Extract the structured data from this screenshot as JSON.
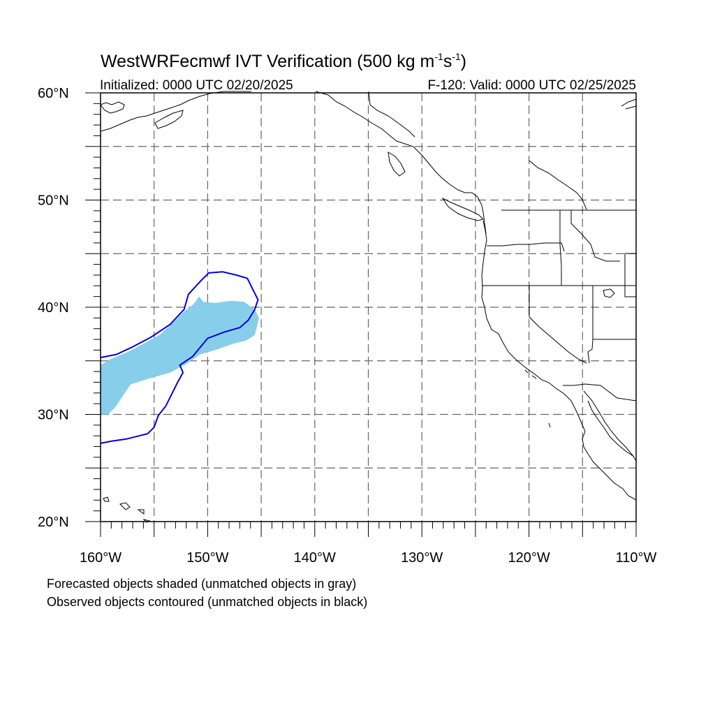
{
  "title": {
    "main": "WestWRFecmwf IVT Verification (500 kg m",
    "sup1": "-1",
    "mid": "s",
    "sup2": "-1",
    "end": ")"
  },
  "subtitle_left": "Initialized: 0000 UTC 02/20/2025",
  "subtitle_right": "F-120: Valid: 0000 UTC 02/25/2025",
  "captions": [
    "Forecasted objects shaded (unmatched objects in gray)",
    "Observed objects contoured (unmatched objects in black)"
  ],
  "chart_data": {
    "type": "map",
    "projection": "cylindrical equidistant",
    "lon_range": [
      -160,
      -110
    ],
    "lat_range": [
      20,
      60
    ],
    "grid": true,
    "grid_spacing_deg": 5,
    "lat_labels": [
      "20°N",
      "30°N",
      "40°N",
      "50°N",
      "60°N"
    ],
    "lat_label_values": [
      20,
      30,
      40,
      50,
      60
    ],
    "lon_labels": [
      "160°W",
      "150°W",
      "140°W",
      "130°W",
      "120°W",
      "110°W"
    ],
    "lon_label_values": [
      -160,
      -150,
      -140,
      -130,
      -120,
      -110
    ],
    "colors": {
      "forecast_fill": "#87ceeb",
      "observed_contour": "#0000dd",
      "coastline": "#000000",
      "grid": "#666666"
    },
    "forecast_object": {
      "polygon": [
        [
          -160,
          34.6
        ],
        [
          -159,
          35.2
        ],
        [
          -157.5,
          35.8
        ],
        [
          -156,
          36.6
        ],
        [
          -154.5,
          37.4
        ],
        [
          -153.3,
          38.5
        ],
        [
          -152.2,
          39.6
        ],
        [
          -151.3,
          40.3
        ],
        [
          -150.8,
          41.0
        ],
        [
          -150.4,
          40.5
        ],
        [
          -149.3,
          40.4
        ],
        [
          -147.8,
          40.6
        ],
        [
          -146.6,
          40.5
        ],
        [
          -145.6,
          39.8
        ],
        [
          -145.2,
          39.0
        ],
        [
          -145.6,
          37.4
        ],
        [
          -146.4,
          36.9
        ],
        [
          -147.6,
          36.6
        ],
        [
          -149.3,
          36.0
        ],
        [
          -150.7,
          35.6
        ],
        [
          -152.0,
          34.7
        ],
        [
          -153.5,
          33.9
        ],
        [
          -155.6,
          33.3
        ],
        [
          -157.2,
          32.8
        ],
        [
          -158.0,
          31.6
        ],
        [
          -158.6,
          30.7
        ],
        [
          -159.3,
          30.0
        ],
        [
          -160,
          30.0
        ]
      ]
    },
    "observed_object": {
      "polygon": [
        [
          -160,
          35.3
        ],
        [
          -158.5,
          35.6
        ],
        [
          -157.0,
          36.3
        ],
        [
          -155.3,
          37.2
        ],
        [
          -153.5,
          38.4
        ],
        [
          -152.2,
          39.8
        ],
        [
          -151.8,
          41.2
        ],
        [
          -150.6,
          42.5
        ],
        [
          -149.9,
          43.2
        ],
        [
          -148.6,
          43.3
        ],
        [
          -147.3,
          43.0
        ],
        [
          -146.3,
          42.7
        ],
        [
          -145.8,
          41.7
        ],
        [
          -145.3,
          40.7
        ],
        [
          -145.6,
          39.8
        ],
        [
          -146.2,
          38.8
        ],
        [
          -147.0,
          38.1
        ],
        [
          -148.4,
          37.7
        ],
        [
          -150.0,
          37.1
        ],
        [
          -151.4,
          35.4
        ],
        [
          -152.6,
          34.6
        ],
        [
          -152.3,
          33.9
        ],
        [
          -152.8,
          33.0
        ],
        [
          -153.4,
          31.8
        ],
        [
          -153.9,
          30.8
        ],
        [
          -154.6,
          29.9
        ],
        [
          -155.0,
          28.8
        ],
        [
          -155.6,
          28.2
        ],
        [
          -156.4,
          28.0
        ],
        [
          -157.6,
          27.7
        ],
        [
          -159.0,
          27.5
        ],
        [
          -160,
          27.3
        ]
      ]
    }
  }
}
